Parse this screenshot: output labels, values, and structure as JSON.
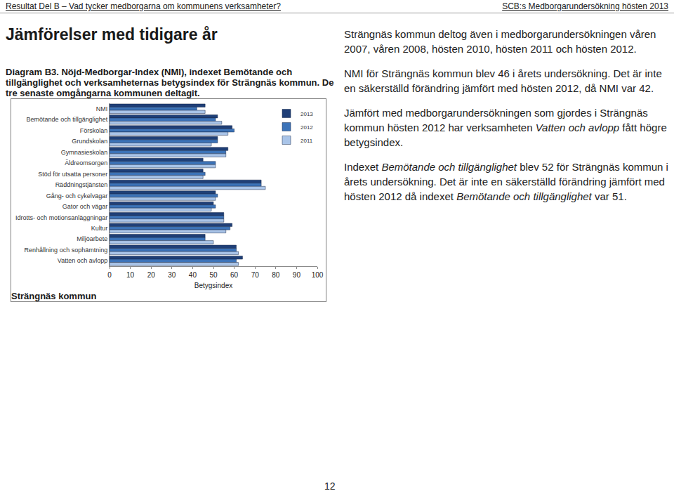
{
  "header": {
    "left": "Resultat Del B – Vad tycker medborgarna om kommunens verksamheter?",
    "right": "SCB:s Medborgarundersökning hösten 2013"
  },
  "heading": "Jämförelser med tidigare år",
  "diagram_caption": "Diagram B3. Nöjd-Medborgar-Index (NMI), indexet Bemötande och tillgänglighet och verksamheternas betygsindex för Strängnäs kommun. De tre senaste omgångarna kommunen deltagit.",
  "chart_data": {
    "type": "bar",
    "orientation": "horizontal",
    "grid": false,
    "legend": "upper right",
    "x_label": "Betygsindex",
    "xlim": [
      0,
      100
    ],
    "xticks": [
      0,
      10,
      20,
      30,
      40,
      50,
      60,
      70,
      80,
      90,
      100
    ],
    "categories": [
      "NMI",
      "Bemötande och tillgänglighet",
      "Förskolan",
      "Grundskolan",
      "Gymnasieskolan",
      "Äldreomsorgen",
      "Stöd för utsatta personer",
      "Räddningstjänsten",
      "Gång- och cykelvägar",
      "Gator och vägar",
      "Idrotts- och motionsanläggningar",
      "Kultur",
      "Miljöarbete",
      "Renhållning och sophämtning",
      "Vatten och avlopp"
    ],
    "series": [
      {
        "name": "2013",
        "color": "#1f3f77",
        "values": [
          46,
          52,
          59,
          52,
          57,
          45,
          45,
          73,
          51,
          50,
          55,
          59,
          46,
          61,
          64
        ]
      },
      {
        "name": "2012",
        "color": "#3c73b8",
        "values": [
          42,
          51,
          60,
          52,
          56,
          51,
          46,
          73,
          52,
          51,
          55,
          58,
          46,
          61,
          61
        ]
      },
      {
        "name": "2011",
        "color": "#a9c4e8",
        "values": [
          46,
          54,
          57,
          49,
          56,
          51,
          45,
          75,
          51,
          49,
          55,
          56,
          50,
          62,
          62
        ]
      }
    ]
  },
  "chart_footer": "Strängnäs kommun",
  "paragraphs": [
    [
      {
        "text": "Strängnäs kommun deltog även i medborgarundersökningen våren 2007, våren 2008, hösten 2010, hösten 2011 och hösten 2012.",
        "italic": false
      }
    ],
    [
      {
        "text": "NMI för Strängnäs kommun blev 46 i årets undersökning. Det är inte en säkerställd förändring jämfört med hösten 2012, då NMI var 42.",
        "italic": false
      }
    ],
    [
      {
        "text": "Jämfört med medborgarundersökningen som gjordes i Strängnäs kommun hösten 2012 har verksamheten ",
        "italic": false
      },
      {
        "text": "Vatten och avlopp",
        "italic": true
      },
      {
        "text": " fått högre betygsindex.",
        "italic": false
      }
    ],
    [
      {
        "text": "Indexet ",
        "italic": false
      },
      {
        "text": "Bemötande och tillgänglighet",
        "italic": true
      },
      {
        "text": " blev 52 för Strängnäs kommun i årets undersökning. Det är inte en säkerställd förändring jämfört med hösten 2012 då indexet ",
        "italic": false
      },
      {
        "text": "Bemötande och tillgänglighet",
        "italic": true
      },
      {
        "text": " var 51.",
        "italic": false
      }
    ]
  ],
  "page_number": "12"
}
